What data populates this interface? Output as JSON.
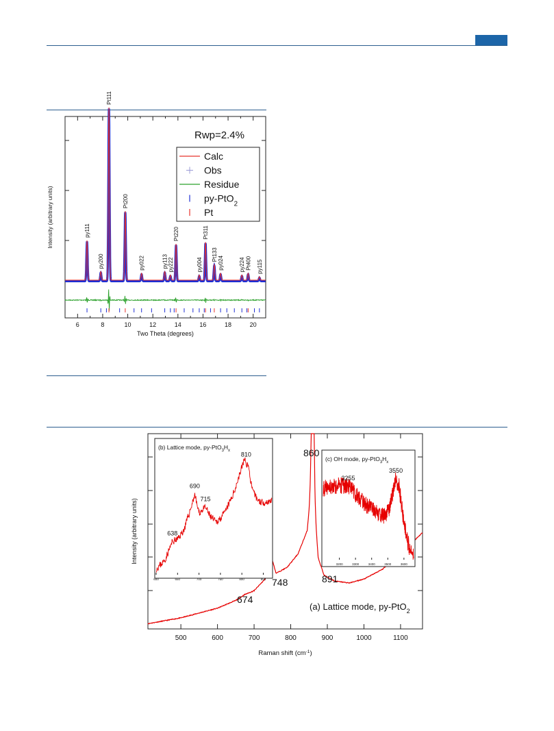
{
  "page": {
    "colors": {
      "rule": "#2b5d8e",
      "tab": "#1c65a8"
    }
  },
  "chart_data": [
    {
      "type": "line",
      "xlabel": "Two Theta (degrees)",
      "ylabel": "Intensity (arbitrary units)",
      "xlim": [
        5,
        21
      ],
      "xticks": [
        6,
        8,
        10,
        12,
        14,
        16,
        18,
        20
      ],
      "annotation": "Rwp=2.4%",
      "legend": {
        "placement": "top-right",
        "entries": [
          {
            "label": "Calc",
            "color": "#e8332b",
            "marker": "line"
          },
          {
            "label": "Obs",
            "color": "#9b9bd6",
            "marker": "plus"
          },
          {
            "label": "Residue",
            "color": "#2aa02a",
            "marker": "line"
          },
          {
            "label": "py-PtO",
            "sub": "2",
            "color": "#1f2fd4",
            "marker": "tick"
          },
          {
            "label": "Pt",
            "color": "#e8332b",
            "marker": "tick"
          }
        ]
      },
      "baseline": 0.06,
      "peaks": [
        {
          "label": "py111",
          "x": 6.75,
          "height": 0.23
        },
        {
          "label": "py200",
          "x": 7.85,
          "height": 0.05
        },
        {
          "label": "Pt111",
          "x": 8.5,
          "height": 1.0
        },
        {
          "label": "Pt200",
          "x": 9.8,
          "height": 0.4
        },
        {
          "label": "py022",
          "x": 11.1,
          "height": 0.04
        },
        {
          "label": "py113",
          "x": 12.95,
          "height": 0.05
        },
        {
          "label": "py222",
          "x": 13.4,
          "height": 0.03
        },
        {
          "label": "Pt220",
          "x": 13.85,
          "height": 0.21
        },
        {
          "label": "py004",
          "x": 15.7,
          "height": 0.03
        },
        {
          "label": "Pt311",
          "x": 16.2,
          "height": 0.22
        },
        {
          "label": "Pt133",
          "x": 16.9,
          "height": 0.09
        },
        {
          "label": "py024",
          "x": 17.4,
          "height": 0.04
        },
        {
          "label": "py224",
          "x": 19.1,
          "height": 0.03
        },
        {
          "label": "Pt400",
          "x": 19.6,
          "height": 0.04
        },
        {
          "label": "py115",
          "x": 20.5,
          "height": 0.02
        }
      ],
      "ticks_py": [
        6.75,
        7.85,
        8.3,
        9.35,
        10.5,
        11.1,
        11.9,
        12.95,
        13.4,
        13.7,
        14.5,
        15.2,
        15.7,
        16.1,
        16.6,
        17.4,
        17.9,
        18.5,
        19.1,
        19.5,
        20.1,
        20.5
      ],
      "ticks_pt": [
        8.5,
        9.8,
        13.85,
        16.2,
        16.9,
        19.6
      ]
    },
    {
      "type": "line",
      "xlabel": "Raman shift (cm",
      "xlabel_sup": "-1",
      "xlabel_end": ")",
      "ylabel": "Intensity (arbitrary units)",
      "xlim": [
        410,
        1160
      ],
      "xticks": [
        500,
        600,
        700,
        800,
        900,
        1000,
        1100
      ],
      "caption": "(a)  Lattice mode, py-PtO",
      "caption_sub": "2",
      "peak_labels": [
        {
          "text": "860",
          "x": 860
        },
        {
          "text": "748",
          "x": 748
        },
        {
          "text": "674",
          "x": 674
        },
        {
          "text": "891",
          "x": 891
        }
      ],
      "series": [
        {
          "x": [
            410,
            500,
            600,
            650,
            674,
            700,
            730,
            748,
            760,
            790,
            820,
            845,
            855,
            860,
            866,
            875,
            891,
            920,
            960,
            1000,
            1050,
            1100,
            1160
          ],
          "y": [
            0.02,
            0.05,
            0.1,
            0.14,
            0.17,
            0.19,
            0.25,
            0.36,
            0.28,
            0.31,
            0.38,
            0.5,
            0.7,
            1.0,
            0.6,
            0.36,
            0.27,
            0.24,
            0.23,
            0.25,
            0.3,
            0.38,
            0.49
          ]
        }
      ],
      "color": "#e60000",
      "insets": [
        {
          "title": "(b) Lattice mode, py-PtO",
          "title_sub": "3",
          "title_end": "H",
          "title_end_sub": "x",
          "xlim": [
            600,
            870
          ],
          "xticks": [
            600,
            650,
            700,
            750,
            800,
            850
          ],
          "peak_labels": [
            {
              "text": "638",
              "x": 638
            },
            {
              "text": "690",
              "x": 690
            },
            {
              "text": "715",
              "x": 715
            },
            {
              "text": "810",
              "x": 810
            }
          ],
          "series": [
            {
              "x": [
                600,
                620,
                638,
                650,
                665,
                680,
                690,
                700,
                715,
                725,
                740,
                760,
                780,
                795,
                805,
                815,
                825,
                840,
                855,
                870
              ],
              "y": [
                0.05,
                0.12,
                0.28,
                0.3,
                0.38,
                0.55,
                0.68,
                0.52,
                0.57,
                0.5,
                0.44,
                0.52,
                0.68,
                0.85,
                0.97,
                0.92,
                0.7,
                0.62,
                0.61,
                0.63
              ]
            }
          ]
        },
        {
          "title": "(c) OH mode, py-PtO",
          "title_sub": "3",
          "title_end": "H",
          "title_end_sub": "x",
          "xlim": [
            3100,
            3660
          ],
          "xticks": [
            3200,
            3300,
            3400,
            3500,
            3600
          ],
          "peak_labels": [
            {
              "text": "3255",
              "x": 3255
            },
            {
              "text": "3550",
              "x": 3550
            }
          ],
          "series": [
            {
              "x": [
                3100,
                3150,
                3200,
                3255,
                3300,
                3350,
                3400,
                3450,
                3480,
                3510,
                3530,
                3550,
                3570,
                3600,
                3630,
                3660
              ],
              "y": [
                0.78,
                0.8,
                0.81,
                0.8,
                0.72,
                0.62,
                0.55,
                0.5,
                0.48,
                0.56,
                0.72,
                0.88,
                0.8,
                0.4,
                0.15,
                0.04
              ]
            }
          ]
        }
      ]
    }
  ]
}
